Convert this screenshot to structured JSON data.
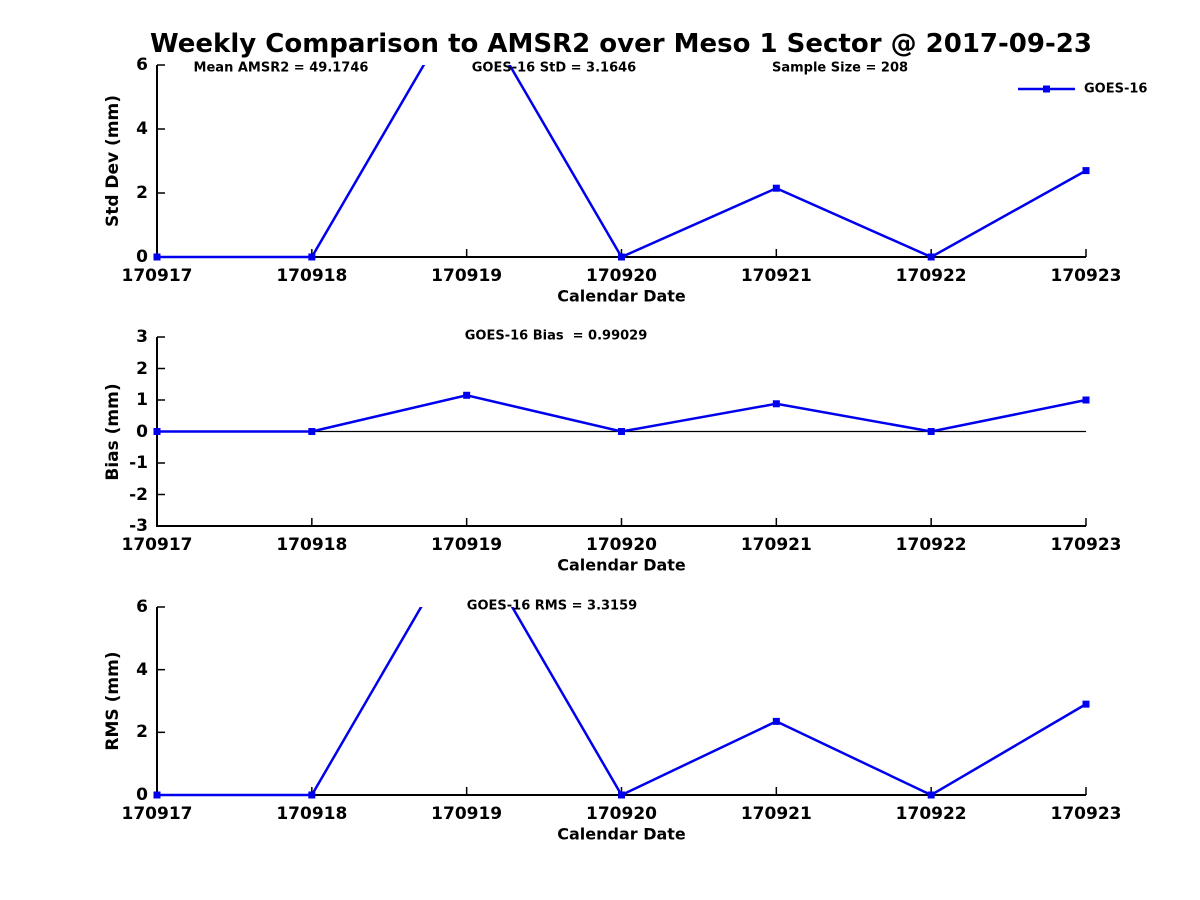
{
  "title": "Weekly Comparison to AMSR2 over Meso 1 Sector @ 2017-09-23",
  "colors": {
    "series": "#0000ee",
    "axis": "#000000",
    "text": "#000000",
    "background": "#ffffff"
  },
  "legend": {
    "label": "GOES-16",
    "marker": "filled-square-icon",
    "position": "upper-right"
  },
  "chart_data": [
    {
      "type": "line",
      "panel": "std-dev",
      "ylabel": "Std Dev (mm)",
      "xlabel": "Calendar Date",
      "categories": [
        "170917",
        "170918",
        "170919",
        "170920",
        "170921",
        "170922",
        "170923"
      ],
      "series": [
        {
          "name": "GOES-16",
          "values": [
            0,
            0,
            8.3,
            0,
            2.15,
            0,
            2.7
          ]
        }
      ],
      "ylim": [
        0,
        6
      ],
      "yticks": [
        0,
        2,
        4,
        6
      ],
      "annotations": [
        "Mean AMSR2 = 49.1746",
        "GOES-16 StD = 3.1646",
        "Sample Size = 208"
      ],
      "grid": false,
      "zero_line": false,
      "note": "value at 170919 exceeds ylim and the line is clipped at the axis top"
    },
    {
      "type": "line",
      "panel": "bias",
      "ylabel": "Bias (mm)",
      "xlabel": "Calendar Date",
      "categories": [
        "170917",
        "170918",
        "170919",
        "170920",
        "170921",
        "170922",
        "170923"
      ],
      "series": [
        {
          "name": "GOES-16",
          "values": [
            0,
            0,
            1.15,
            0,
            0.88,
            0,
            1.0
          ]
        }
      ],
      "ylim": [
        -3,
        3
      ],
      "yticks": [
        3,
        2,
        1,
        0,
        -1,
        -2,
        -3
      ],
      "annotations": [
        "GOES-16 Bias  = 0.99029"
      ],
      "grid": false,
      "zero_line": true,
      "note": ""
    },
    {
      "type": "line",
      "panel": "rms",
      "ylabel": "RMS (mm)",
      "xlabel": "Calendar Date",
      "categories": [
        "170917",
        "170918",
        "170919",
        "170920",
        "170921",
        "170922",
        "170923"
      ],
      "series": [
        {
          "name": "GOES-16",
          "values": [
            0,
            0,
            8.5,
            0,
            2.35,
            0,
            2.9
          ]
        }
      ],
      "ylim": [
        0,
        6
      ],
      "yticks": [
        0,
        2,
        4,
        6
      ],
      "annotations": [
        "GOES-16 RMS = 3.3159"
      ],
      "grid": false,
      "zero_line": false,
      "note": "value at 170919 exceeds ylim and the line is clipped at the axis top"
    }
  ]
}
